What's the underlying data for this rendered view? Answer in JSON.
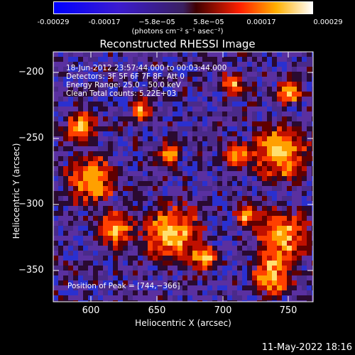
{
  "colorbar": {
    "ticks": [
      "-0.00029",
      "-0.00017",
      "−5.8e−05",
      "5.8e−05",
      "0.00017",
      "0.00029"
    ],
    "units": "(photons cm⁻² s⁻¹ asec⁻²)"
  },
  "title": "Reconstructed RHESSI Image",
  "info": {
    "line1": "18-Jun-2012 23:57:44.000 to 00:03:44.000",
    "line2": "Detectors: 3F 5F 6F 7F 8F, Att 0",
    "line3": "Energy Range: 25.0 – 50.0 keV",
    "line4": "Clean    Total counts: 5.22E+03"
  },
  "peak": "Position of Peak = [744,−366]",
  "axes": {
    "xlabel": "Heliocentric X (arcsec)",
    "ylabel": "Heliocentric Y (arcsec)",
    "xticks": [
      "600",
      "650",
      "700",
      "750"
    ],
    "yticks": [
      "−200",
      "−250",
      "−300",
      "−350"
    ]
  },
  "date": "11-May-2022 18:16",
  "colors": {
    "background": "#000000",
    "frame": "#ffffff"
  }
}
